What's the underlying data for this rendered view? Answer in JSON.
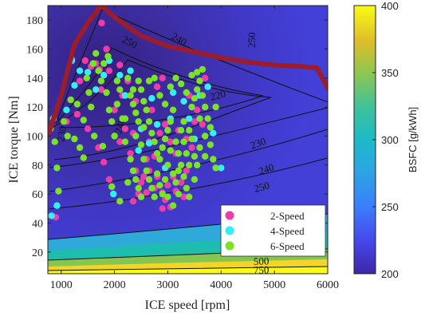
{
  "chart_data": {
    "type": "scatter",
    "xlabel": "ICE speed [rpm]",
    "ylabel": "ICE torque [Nm]",
    "xlim": [
      750,
      6000
    ],
    "ylim": [
      5,
      190
    ],
    "x_ticks": [
      "1000",
      "2000",
      "3000",
      "4000",
      "5000",
      "6000"
    ],
    "y_ticks": [
      "20",
      "40",
      "60",
      "80",
      "100",
      "120",
      "140",
      "160",
      "180"
    ],
    "grid": false,
    "legend": "bottom-right",
    "colorbar": {
      "label": "BSFC [g/kWh]",
      "range": [
        200,
        400
      ],
      "ticks": [
        "200",
        "250",
        "300",
        "350",
        "400"
      ]
    },
    "max_torque_curve": {
      "color": "#9b1c2c",
      "x": [
        750,
        1000,
        1250,
        1500,
        1750,
        2000,
        2500,
        3000,
        3500,
        4000,
        4500,
        5000,
        5500,
        5800,
        6000
      ],
      "y": [
        100,
        128,
        163,
        178,
        190,
        182,
        169,
        162,
        158,
        154,
        151,
        149,
        148,
        147,
        133
      ]
    },
    "contour_labels": [
      "250",
      "240",
      "250",
      "220",
      "230",
      "240",
      "250",
      "500",
      "750",
      "240",
      "230"
    ],
    "series": [
      {
        "name": "2-Speed",
        "color": "#f03ca8",
        "points": [
          [
            1760,
            178
          ],
          [
            1560,
            148
          ],
          [
            1720,
            146
          ],
          [
            1900,
            145
          ],
          [
            1200,
            153
          ],
          [
            1450,
            152
          ],
          [
            2100,
            149
          ],
          [
            1350,
            138
          ],
          [
            1750,
            132
          ],
          [
            2150,
            128
          ],
          [
            1300,
            115
          ],
          [
            1500,
            105
          ],
          [
            1700,
            92
          ],
          [
            1800,
            82
          ],
          [
            2350,
            102
          ],
          [
            2300,
            88
          ],
          [
            2400,
            76
          ],
          [
            2500,
            68
          ],
          [
            2600,
            61
          ],
          [
            2350,
            55
          ],
          [
            2800,
            72
          ],
          [
            2900,
            61
          ],
          [
            2950,
            56
          ],
          [
            3050,
            51
          ],
          [
            2900,
            50
          ],
          [
            3150,
            62
          ],
          [
            3250,
            68
          ],
          [
            3350,
            76
          ],
          [
            3300,
            58
          ],
          [
            3450,
            92
          ],
          [
            3650,
            108
          ],
          [
            2950,
            108
          ],
          [
            2850,
            102
          ],
          [
            3050,
            96
          ],
          [
            3150,
            88
          ],
          [
            3250,
            80
          ],
          [
            2700,
            118
          ],
          [
            2650,
            96
          ],
          [
            2750,
            86
          ],
          [
            3100,
            72
          ],
          [
            3000,
            66
          ],
          [
            2450,
            60
          ],
          [
            2550,
            72
          ],
          [
            2600,
            84
          ],
          [
            3400,
            128
          ],
          [
            3550,
            118
          ],
          [
            3600,
            138
          ],
          [
            2100,
            96
          ],
          [
            2200,
            105
          ],
          [
            2000,
            118
          ],
          [
            3200,
            104
          ],
          [
            2800,
            134
          ],
          [
            2400,
            124
          ],
          [
            2900,
            140
          ],
          [
            1900,
            70
          ],
          [
            2650,
            76
          ],
          [
            2750,
            64
          ],
          [
            3350,
            98
          ],
          [
            3500,
            110
          ],
          [
            1650,
            150
          ],
          [
            1850,
            160
          ],
          [
            900,
            44
          ],
          [
            1100,
            110
          ],
          [
            2250,
            138
          ],
          [
            3700,
            140
          ]
        ]
      },
      {
        "name": "4-Speed",
        "color": "#33f0f4",
        "points": [
          [
            820,
            45
          ],
          [
            920,
            52
          ],
          [
            1200,
            152
          ],
          [
            1350,
            145
          ],
          [
            1900,
            152
          ],
          [
            1980,
            60
          ],
          [
            2200,
            128
          ],
          [
            2500,
            105
          ],
          [
            2650,
            95
          ],
          [
            2800,
            108
          ],
          [
            3050,
            112
          ],
          [
            3300,
            124
          ],
          [
            3400,
            112
          ],
          [
            3600,
            128
          ],
          [
            4000,
            78
          ],
          [
            1100,
            118
          ],
          [
            1500,
            144
          ],
          [
            1800,
            142
          ],
          [
            2950,
            78
          ],
          [
            3200,
            88
          ],
          [
            3500,
            98
          ],
          [
            2300,
            145
          ],
          [
            1650,
            132
          ],
          [
            3850,
            102
          ],
          [
            2450,
            90
          ],
          [
            2100,
            142
          ],
          [
            1250,
            135
          ],
          [
            3100,
            130
          ],
          [
            2700,
            126
          ],
          [
            3750,
            134
          ]
        ]
      },
      {
        "name": "6-Speed",
        "color": "#7ae327",
        "points": [
          [
            800,
            105
          ],
          [
            850,
            112
          ],
          [
            880,
            96
          ],
          [
            920,
            78
          ],
          [
            950,
            62
          ],
          [
            1050,
            110
          ],
          [
            1120,
            100
          ],
          [
            1180,
            125
          ],
          [
            1250,
            98
          ],
          [
            1350,
            92
          ],
          [
            1420,
            85
          ],
          [
            1480,
            140
          ],
          [
            1520,
            130
          ],
          [
            1560,
            120
          ],
          [
            1600,
            150
          ],
          [
            1650,
            157
          ],
          [
            1700,
            145
          ],
          [
            1750,
            138
          ],
          [
            1800,
            150
          ],
          [
            1850,
            130
          ],
          [
            1900,
            118
          ],
          [
            1950,
            110
          ],
          [
            2000,
            100
          ],
          [
            2050,
            122
          ],
          [
            2100,
            132
          ],
          [
            2150,
            112
          ],
          [
            2200,
            96
          ],
          [
            2250,
            140
          ],
          [
            2300,
            128
          ],
          [
            2350,
            122
          ],
          [
            2400,
            116
          ],
          [
            2400,
            100
          ],
          [
            2450,
            138
          ],
          [
            2500,
            132
          ],
          [
            2550,
            124
          ],
          [
            2600,
            118
          ],
          [
            2650,
            110
          ],
          [
            2700,
            102
          ],
          [
            2750,
            96
          ],
          [
            2800,
            88
          ],
          [
            2850,
            84
          ],
          [
            2900,
            92
          ],
          [
            2950,
            98
          ],
          [
            3000,
            104
          ],
          [
            3050,
            110
          ],
          [
            3100,
            118
          ],
          [
            3150,
            96
          ],
          [
            3200,
            88
          ],
          [
            3250,
            80
          ],
          [
            3300,
            72
          ],
          [
            3350,
            64
          ],
          [
            3400,
            58
          ],
          [
            3450,
            120
          ],
          [
            3500,
            126
          ],
          [
            3550,
            132
          ],
          [
            3600,
            138
          ],
          [
            3650,
            128
          ],
          [
            3700,
            120
          ],
          [
            3750,
            112
          ],
          [
            2300,
            84
          ],
          [
            2350,
            76
          ],
          [
            2400,
            70
          ],
          [
            2450,
            64
          ],
          [
            2500,
            58
          ],
          [
            2550,
            84
          ],
          [
            2600,
            76
          ],
          [
            2650,
            70
          ],
          [
            2700,
            64
          ],
          [
            2750,
            58
          ],
          [
            2800,
            74
          ],
          [
            2850,
            66
          ],
          [
            2900,
            60
          ],
          [
            2950,
            70
          ],
          [
            3000,
            80
          ],
          [
            3050,
            90
          ],
          [
            3100,
            74
          ],
          [
            3150,
            68
          ],
          [
            3200,
            76
          ],
          [
            3250,
            104
          ],
          [
            3300,
            96
          ],
          [
            3350,
            88
          ],
          [
            3400,
            104
          ],
          [
            3450,
            98
          ],
          [
            3500,
            86
          ],
          [
            3550,
            80
          ],
          [
            3600,
            92
          ],
          [
            3700,
            100
          ],
          [
            3800,
            94
          ],
          [
            3850,
            84
          ],
          [
            3900,
            78
          ],
          [
            2450,
            110
          ],
          [
            2550,
            106
          ],
          [
            2650,
            138
          ],
          [
            2750,
            140
          ],
          [
            2850,
            128
          ],
          [
            2950,
            122
          ],
          [
            3050,
            134
          ],
          [
            3150,
            140
          ],
          [
            3250,
            136
          ],
          [
            3350,
            130
          ],
          [
            3450,
            142
          ],
          [
            3550,
            144
          ],
          [
            3650,
            146
          ],
          [
            2050,
            138
          ],
          [
            2200,
            112
          ],
          [
            1300,
            122
          ],
          [
            1420,
            111
          ],
          [
            1950,
            65
          ],
          [
            2100,
            55
          ],
          [
            2250,
            68
          ],
          [
            1880,
            155
          ],
          [
            1620,
            100
          ],
          [
            1780,
            93
          ],
          [
            2350,
            132
          ],
          [
            2500,
            94
          ],
          [
            3000,
            58
          ],
          [
            3100,
            52
          ],
          [
            3200,
            60
          ],
          [
            3300,
            110
          ],
          [
            3400,
            80
          ],
          [
            3500,
            70
          ],
          [
            3600,
            112
          ],
          [
            3700,
            86
          ],
          [
            3800,
            106
          ],
          [
            3900,
            120
          ]
        ]
      }
    ]
  }
}
